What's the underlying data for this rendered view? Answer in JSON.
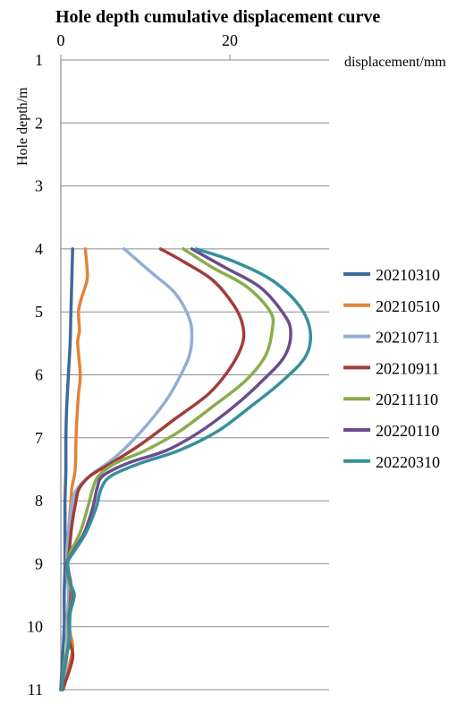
{
  "chart_data": {
    "type": "line",
    "title": "Hole depth cumulative displacement curve",
    "xlabel": "displacement/mm",
    "ylabel": "Hole depth/m",
    "x_ticks": [
      "0",
      "20"
    ],
    "y_ticks": [
      "1",
      "2",
      "3",
      "4",
      "5",
      "6",
      "7",
      "8",
      "9",
      "10",
      "11"
    ],
    "xlim": [
      0,
      32
    ],
    "ylim": [
      1,
      11
    ],
    "y_inverted": true,
    "x_axis_position": "top",
    "grid": "horizontal",
    "legend_position": "right",
    "series": [
      {
        "name": "20210310",
        "color": "#3e6a9c",
        "points": [
          [
            1.4,
            4.0
          ],
          [
            1.3,
            4.5
          ],
          [
            1.2,
            5.0
          ],
          [
            1.1,
            5.5
          ],
          [
            0.9,
            6.0
          ],
          [
            0.7,
            6.5
          ],
          [
            0.6,
            7.0
          ],
          [
            0.6,
            7.5
          ],
          [
            0.5,
            8.0
          ],
          [
            0.5,
            8.5
          ],
          [
            0.5,
            9.0
          ],
          [
            0.4,
            9.5
          ],
          [
            0.4,
            10.0
          ],
          [
            0.2,
            10.5
          ],
          [
            0.0,
            11.0
          ]
        ]
      },
      {
        "name": "20210510",
        "color": "#e0843a",
        "points": [
          [
            2.9,
            4.0
          ],
          [
            3.1,
            4.3
          ],
          [
            3.1,
            4.5
          ],
          [
            2.4,
            4.8
          ],
          [
            2.1,
            5.0
          ],
          [
            2.2,
            5.3
          ],
          [
            2.0,
            5.5
          ],
          [
            2.3,
            6.0
          ],
          [
            2.1,
            6.3
          ],
          [
            1.9,
            6.7
          ],
          [
            1.8,
            7.0
          ],
          [
            1.7,
            7.5
          ],
          [
            1.3,
            7.8
          ],
          [
            1.2,
            8.0
          ],
          [
            0.9,
            8.5
          ],
          [
            0.7,
            9.0
          ],
          [
            1.2,
            9.3
          ],
          [
            1.0,
            9.5
          ],
          [
            1.0,
            10.0
          ],
          [
            1.4,
            10.3
          ],
          [
            1.2,
            10.5
          ],
          [
            0.3,
            11.0
          ]
        ]
      },
      {
        "name": "20210711",
        "color": "#93aed6",
        "points": [
          [
            7.5,
            4.0
          ],
          [
            10.5,
            4.35
          ],
          [
            13.5,
            4.7
          ],
          [
            15.2,
            5.1
          ],
          [
            15.5,
            5.4
          ],
          [
            15.2,
            5.7
          ],
          [
            14.2,
            6.0
          ],
          [
            12.5,
            6.4
          ],
          [
            9.5,
            6.9
          ],
          [
            6.5,
            7.3
          ],
          [
            3.5,
            7.6
          ],
          [
            2.0,
            7.8
          ],
          [
            1.4,
            8.0
          ],
          [
            0.9,
            8.5
          ],
          [
            0.7,
            9.0
          ],
          [
            0.9,
            9.5
          ],
          [
            0.7,
            10.0
          ],
          [
            0.7,
            10.5
          ],
          [
            0.1,
            11.0
          ]
        ]
      },
      {
        "name": "20210911",
        "color": "#a23c38",
        "points": [
          [
            11.8,
            4.0
          ],
          [
            14.5,
            4.2
          ],
          [
            18.0,
            4.5
          ],
          [
            20.5,
            4.9
          ],
          [
            21.5,
            5.2
          ],
          [
            21.5,
            5.5
          ],
          [
            20.0,
            5.9
          ],
          [
            17.5,
            6.3
          ],
          [
            13.5,
            6.7
          ],
          [
            9.5,
            7.1
          ],
          [
            6.0,
            7.4
          ],
          [
            3.5,
            7.6
          ],
          [
            2.2,
            7.8
          ],
          [
            1.8,
            8.0
          ],
          [
            1.3,
            8.4
          ],
          [
            1.0,
            8.8
          ],
          [
            0.8,
            9.0
          ],
          [
            1.2,
            9.4
          ],
          [
            1.0,
            9.8
          ],
          [
            1.0,
            10.2
          ],
          [
            1.4,
            10.5
          ],
          [
            0.2,
            11.0
          ]
        ]
      },
      {
        "name": "20211110",
        "color": "#8aad4b",
        "points": [
          [
            14.5,
            4.0
          ],
          [
            18.0,
            4.3
          ],
          [
            22.0,
            4.6
          ],
          [
            24.8,
            5.0
          ],
          [
            25.0,
            5.3
          ],
          [
            24.2,
            5.7
          ],
          [
            21.8,
            6.1
          ],
          [
            18.0,
            6.5
          ],
          [
            14.0,
            6.9
          ],
          [
            10.0,
            7.2
          ],
          [
            6.5,
            7.4
          ],
          [
            4.5,
            7.6
          ],
          [
            3.8,
            7.8
          ],
          [
            3.2,
            8.1
          ],
          [
            2.3,
            8.5
          ],
          [
            1.2,
            8.8
          ],
          [
            0.7,
            9.0
          ],
          [
            1.0,
            9.3
          ],
          [
            1.4,
            9.5
          ],
          [
            0.9,
            9.8
          ],
          [
            0.9,
            10.2
          ],
          [
            0.4,
            10.6
          ],
          [
            0.0,
            11.0
          ]
        ]
      },
      {
        "name": "20220110",
        "color": "#6b4c8e",
        "points": [
          [
            15.5,
            4.0
          ],
          [
            19.5,
            4.3
          ],
          [
            23.5,
            4.6
          ],
          [
            26.2,
            5.0
          ],
          [
            27.2,
            5.3
          ],
          [
            26.5,
            5.7
          ],
          [
            23.8,
            6.1
          ],
          [
            20.5,
            6.5
          ],
          [
            16.5,
            6.9
          ],
          [
            12.5,
            7.2
          ],
          [
            8.0,
            7.4
          ],
          [
            5.0,
            7.6
          ],
          [
            4.3,
            7.8
          ],
          [
            3.8,
            8.1
          ],
          [
            2.8,
            8.5
          ],
          [
            1.5,
            8.8
          ],
          [
            0.7,
            9.0
          ],
          [
            1.1,
            9.3
          ],
          [
            1.5,
            9.5
          ],
          [
            1.0,
            9.8
          ],
          [
            1.0,
            10.2
          ],
          [
            0.5,
            10.6
          ],
          [
            0.0,
            11.0
          ]
        ]
      },
      {
        "name": "20220310",
        "color": "#35909c",
        "points": [
          [
            16.0,
            4.0
          ],
          [
            20.5,
            4.2
          ],
          [
            25.0,
            4.5
          ],
          [
            28.2,
            4.9
          ],
          [
            29.5,
            5.3
          ],
          [
            29.0,
            5.7
          ],
          [
            26.2,
            6.1
          ],
          [
            22.5,
            6.5
          ],
          [
            18.5,
            6.9
          ],
          [
            14.0,
            7.2
          ],
          [
            9.5,
            7.4
          ],
          [
            6.0,
            7.6
          ],
          [
            4.8,
            7.8
          ],
          [
            4.2,
            8.1
          ],
          [
            3.0,
            8.5
          ],
          [
            1.6,
            8.8
          ],
          [
            0.8,
            9.0
          ],
          [
            1.1,
            9.3
          ],
          [
            1.6,
            9.5
          ],
          [
            1.1,
            9.8
          ],
          [
            1.0,
            10.2
          ],
          [
            0.5,
            10.6
          ],
          [
            0.1,
            11.0
          ]
        ]
      }
    ]
  }
}
